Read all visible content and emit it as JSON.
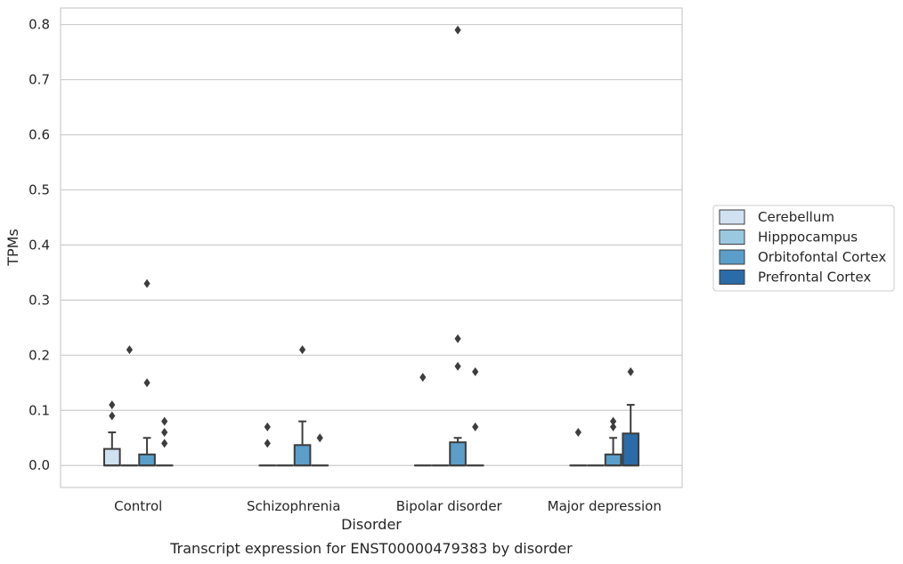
{
  "chart_data": {
    "type": "box",
    "title": "",
    "caption": "Transcript expression for ENST00000479383 by disorder",
    "xlabel": "Disorder",
    "ylabel": "TPMs",
    "ylim": [
      -0.04,
      0.83
    ],
    "yticks": [
      0.0,
      0.1,
      0.2,
      0.3,
      0.4,
      0.5,
      0.6,
      0.7,
      0.8
    ],
    "ytick_labels": [
      "0.0",
      "0.1",
      "0.2",
      "0.3",
      "0.4",
      "0.5",
      "0.6",
      "0.7",
      "0.8"
    ],
    "grid": true,
    "legend_position": "right",
    "categories": [
      "Control",
      "Schizophrenia",
      "Bipolar disorder",
      "Major depression"
    ],
    "series": [
      {
        "name": "Cerebellum",
        "color": "#d0e1f2",
        "boxes": [
          {
            "q1": 0.0,
            "median": 0.0,
            "q3": 0.03,
            "whisker_low": 0.0,
            "whisker_high": 0.06,
            "outliers": [
              0.09,
              0.11
            ]
          },
          {
            "q1": 0.0,
            "median": 0.0,
            "q3": 0.0,
            "whisker_low": 0.0,
            "whisker_high": 0.0,
            "outliers": [
              0.04,
              0.07
            ]
          },
          {
            "q1": 0.0,
            "median": 0.0,
            "q3": 0.0,
            "whisker_low": 0.0,
            "whisker_high": 0.0,
            "outliers": [
              0.16
            ]
          },
          {
            "q1": 0.0,
            "median": 0.0,
            "q3": 0.0,
            "whisker_low": 0.0,
            "whisker_high": 0.0,
            "outliers": [
              0.06
            ]
          }
        ]
      },
      {
        "name": "Hipppocampus",
        "color": "#9ac8e0",
        "boxes": [
          {
            "q1": 0.0,
            "median": 0.0,
            "q3": 0.0,
            "whisker_low": 0.0,
            "whisker_high": 0.0,
            "outliers": [
              0.21
            ]
          },
          {
            "q1": 0.0,
            "median": 0.0,
            "q3": 0.0,
            "whisker_low": 0.0,
            "whisker_high": 0.0,
            "outliers": []
          },
          {
            "q1": 0.0,
            "median": 0.0,
            "q3": 0.0,
            "whisker_low": 0.0,
            "whisker_high": 0.0,
            "outliers": []
          },
          {
            "q1": 0.0,
            "median": 0.0,
            "q3": 0.0,
            "whisker_low": 0.0,
            "whisker_high": 0.0,
            "outliers": []
          }
        ]
      },
      {
        "name": "Orbitofontal Cortex",
        "color": "#5a9ec9",
        "boxes": [
          {
            "q1": 0.0,
            "median": 0.0,
            "q3": 0.02,
            "whisker_low": 0.0,
            "whisker_high": 0.05,
            "outliers": [
              0.15,
              0.33
            ]
          },
          {
            "q1": 0.0,
            "median": 0.0,
            "q3": 0.037,
            "whisker_low": 0.0,
            "whisker_high": 0.08,
            "outliers": [
              0.21
            ]
          },
          {
            "q1": 0.0,
            "median": 0.0,
            "q3": 0.042,
            "whisker_low": 0.0,
            "whisker_high": 0.05,
            "outliers": [
              0.18,
              0.23,
              0.79
            ]
          },
          {
            "q1": 0.0,
            "median": 0.0,
            "q3": 0.02,
            "whisker_low": 0.0,
            "whisker_high": 0.05,
            "outliers": [
              0.07,
              0.08
            ]
          }
        ]
      },
      {
        "name": "Prefrontal Cortex",
        "color": "#2b6ba8",
        "boxes": [
          {
            "q1": 0.0,
            "median": 0.0,
            "q3": 0.0,
            "whisker_low": 0.0,
            "whisker_high": 0.0,
            "outliers": [
              0.04,
              0.06,
              0.08
            ]
          },
          {
            "q1": 0.0,
            "median": 0.0,
            "q3": 0.0,
            "whisker_low": 0.0,
            "whisker_high": 0.0,
            "outliers": [
              0.05
            ]
          },
          {
            "q1": 0.0,
            "median": 0.0,
            "q3": 0.0,
            "whisker_low": 0.0,
            "whisker_high": 0.0,
            "outliers": [
              0.07,
              0.17
            ]
          },
          {
            "q1": 0.0,
            "median": 0.0,
            "q3": 0.058,
            "whisker_low": 0.0,
            "whisker_high": 0.11,
            "outliers": [
              0.17
            ]
          }
        ]
      }
    ]
  }
}
